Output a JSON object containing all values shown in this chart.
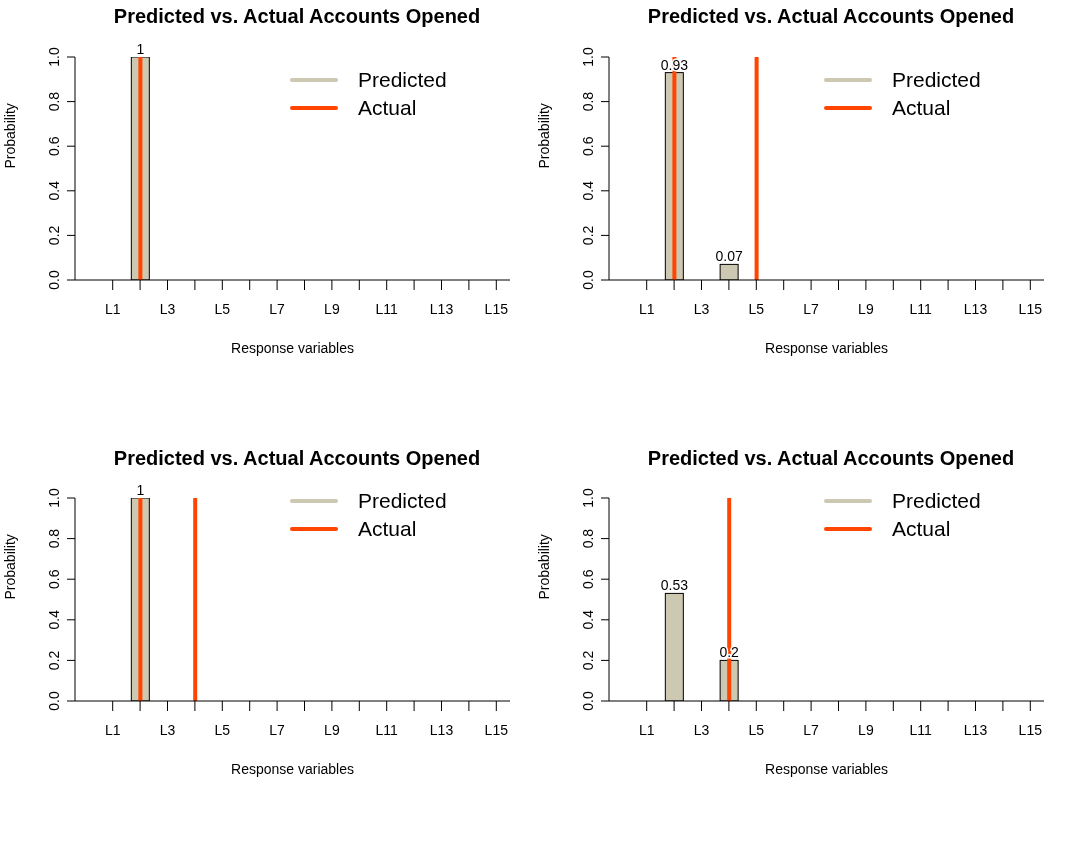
{
  "chart_data": [
    {
      "type": "bar",
      "title": "Predicted vs. Actual Accounts Opened",
      "xlabel": "Response variables",
      "ylabel": "Probability",
      "categories": [
        "L1",
        null,
        "L3",
        null,
        "L5",
        null,
        "L7",
        null,
        "L9",
        null,
        "L11",
        null,
        "L13",
        null,
        "L15"
      ],
      "series": [
        {
          "name": "Predicted",
          "color": "#cdc8b1",
          "values": [
            0,
            1,
            0,
            0,
            0,
            0,
            0,
            0,
            0,
            0,
            0,
            0,
            0,
            0,
            0
          ],
          "value_labels": [
            null,
            "1",
            null,
            null,
            null,
            null,
            null,
            null,
            null,
            null,
            null,
            null,
            null,
            null,
            null
          ]
        },
        {
          "name": "Actual",
          "color": "#ff4500",
          "values": [
            0,
            1,
            0,
            0,
            0,
            0,
            0,
            0,
            0,
            0,
            0,
            0,
            0,
            0,
            0
          ]
        }
      ],
      "ylim": [
        0,
        1
      ],
      "yticks": [
        {
          "value": 0,
          "label": "0.0"
        },
        {
          "value": 0.2,
          "label": "0.2"
        },
        {
          "value": 0.4,
          "label": "0.4"
        },
        {
          "value": 0.6,
          "label": "0.6"
        },
        {
          "value": 0.8,
          "label": "0.8"
        },
        {
          "value": 1,
          "label": "1.0"
        }
      ],
      "legend": "top right"
    },
    {
      "type": "bar",
      "title": "Predicted vs. Actual Accounts Opened",
      "xlabel": "Response variables",
      "ylabel": "Probability",
      "categories": [
        "L1",
        null,
        "L3",
        null,
        "L5",
        null,
        "L7",
        null,
        "L9",
        null,
        "L11",
        null,
        "L13",
        null,
        "L15"
      ],
      "series": [
        {
          "name": "Predicted",
          "color": "#cdc8b1",
          "values": [
            0,
            0.93,
            0,
            0.07,
            0,
            0,
            0,
            0,
            0,
            0,
            0,
            0,
            0,
            0,
            0
          ],
          "value_labels": [
            null,
            "0.93",
            null,
            "0.07",
            null,
            null,
            null,
            null,
            null,
            null,
            null,
            null,
            null,
            null,
            null
          ]
        },
        {
          "name": "Actual",
          "color": "#ff4500",
          "values": [
            0,
            1,
            0,
            0,
            1,
            0,
            0,
            0,
            0,
            0,
            0,
            0,
            0,
            0,
            0
          ]
        }
      ],
      "ylim": [
        0,
        1
      ],
      "yticks": [
        {
          "value": 0,
          "label": "0.0"
        },
        {
          "value": 0.2,
          "label": "0.2"
        },
        {
          "value": 0.4,
          "label": "0.4"
        },
        {
          "value": 0.6,
          "label": "0.6"
        },
        {
          "value": 0.8,
          "label": "0.8"
        },
        {
          "value": 1,
          "label": "1.0"
        }
      ],
      "legend": "top right"
    },
    {
      "type": "bar",
      "title": "Predicted vs. Actual Accounts Opened",
      "xlabel": "Response variables",
      "ylabel": "Probability",
      "categories": [
        "L1",
        null,
        "L3",
        null,
        "L5",
        null,
        "L7",
        null,
        "L9",
        null,
        "L11",
        null,
        "L13",
        null,
        "L15"
      ],
      "series": [
        {
          "name": "Predicted",
          "color": "#cdc8b1",
          "values": [
            0,
            1,
            0,
            0,
            0,
            0,
            0,
            0,
            0,
            0,
            0,
            0,
            0,
            0,
            0
          ],
          "value_labels": [
            null,
            "1",
            null,
            null,
            null,
            null,
            null,
            null,
            null,
            null,
            null,
            null,
            null,
            null,
            null
          ]
        },
        {
          "name": "Actual",
          "color": "#ff4500",
          "values": [
            0,
            1,
            0,
            1,
            0,
            0,
            0,
            0,
            0,
            0,
            0,
            0,
            0,
            0,
            0
          ]
        }
      ],
      "ylim": [
        0,
        1
      ],
      "yticks": [
        {
          "value": 0,
          "label": "0.0"
        },
        {
          "value": 0.2,
          "label": "0.2"
        },
        {
          "value": 0.4,
          "label": "0.4"
        },
        {
          "value": 0.6,
          "label": "0.6"
        },
        {
          "value": 0.8,
          "label": "0.8"
        },
        {
          "value": 1,
          "label": "1.0"
        }
      ],
      "legend": "top right"
    },
    {
      "type": "bar",
      "title": "Predicted vs. Actual Accounts Opened",
      "xlabel": "Response variables",
      "ylabel": "Probability",
      "categories": [
        "L1",
        null,
        "L3",
        null,
        "L5",
        null,
        "L7",
        null,
        "L9",
        null,
        "L11",
        null,
        "L13",
        null,
        "L15"
      ],
      "series": [
        {
          "name": "Predicted",
          "color": "#cdc8b1",
          "values": [
            0,
            0.53,
            0,
            0.2,
            0,
            0,
            0,
            0,
            0,
            0,
            0,
            0,
            0,
            0,
            0
          ],
          "value_labels": [
            null,
            "0.53",
            null,
            "0.2",
            null,
            null,
            null,
            null,
            null,
            null,
            null,
            null,
            null,
            null,
            null
          ]
        },
        {
          "name": "Actual",
          "color": "#ff4500",
          "values": [
            0,
            0,
            0,
            1,
            0,
            0,
            0,
            0,
            0,
            0,
            0,
            0,
            0,
            0,
            0
          ]
        }
      ],
      "ylim": [
        0,
        1
      ],
      "yticks": [
        {
          "value": 0,
          "label": "0.0"
        },
        {
          "value": 0.2,
          "label": "0.2"
        },
        {
          "value": 0.4,
          "label": "0.4"
        },
        {
          "value": 0.6,
          "label": "0.6"
        },
        {
          "value": 0.8,
          "label": "0.8"
        },
        {
          "value": 1,
          "label": "1.0"
        }
      ],
      "legend": "top right"
    }
  ]
}
